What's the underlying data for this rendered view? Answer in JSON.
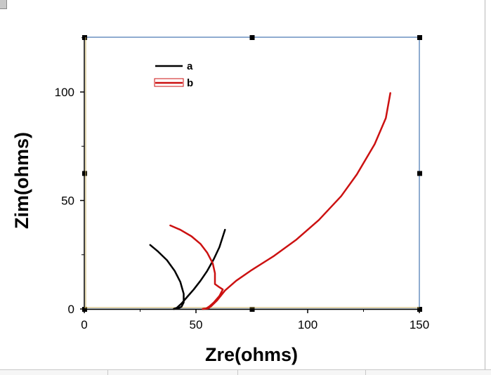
{
  "colors": {
    "frame": "#1f5aa0",
    "series_a": "#000000",
    "series_b": "#cc1111",
    "handle": "#000000"
  },
  "chart_data": {
    "type": "line",
    "title": "",
    "xlabel": "Zre(ohms)",
    "ylabel": "Zim(ohms)",
    "xlim": [
      0,
      150
    ],
    "ylim": [
      0,
      125
    ],
    "xticks": [
      0,
      50,
      100,
      150
    ],
    "yticks": [
      0,
      50,
      100
    ],
    "grid": false,
    "legend_position": "top-left",
    "series": [
      {
        "name": "a",
        "color": "#000000",
        "points": [
          [
            29.5,
            29.5
          ],
          [
            33,
            26.5
          ],
          [
            37,
            22.5
          ],
          [
            40.5,
            17.5
          ],
          [
            43,
            12.5
          ],
          [
            44.5,
            7
          ],
          [
            44.5,
            3
          ],
          [
            43.5,
            1
          ],
          [
            42,
            0.3
          ],
          [
            40,
            0
          ],
          [
            41.5,
            0.6
          ],
          [
            43.5,
            2.5
          ],
          [
            46,
            5.5
          ],
          [
            49,
            9
          ],
          [
            52,
            13
          ],
          [
            55,
            17.5
          ],
          [
            58,
            23
          ],
          [
            60.5,
            28.5
          ],
          [
            63,
            36.5
          ]
        ]
      },
      {
        "name": "b",
        "color": "#cc1111",
        "points": [
          [
            38.5,
            38.5
          ],
          [
            43,
            36.5
          ],
          [
            48,
            33.5
          ],
          [
            52,
            30
          ],
          [
            55,
            26
          ],
          [
            57.5,
            21
          ],
          [
            58.5,
            16.5
          ],
          [
            58.5,
            11.5
          ],
          [
            60.5,
            10
          ],
          [
            62,
            9
          ],
          [
            60.5,
            6
          ],
          [
            58,
            3
          ],
          [
            56,
            1.2
          ],
          [
            54.5,
            0.2
          ],
          [
            53,
            0
          ],
          [
            55.5,
            0.3
          ],
          [
            57,
            1.5
          ],
          [
            59.5,
            4
          ],
          [
            63,
            8.5
          ],
          [
            68,
            13
          ],
          [
            75,
            18
          ],
          [
            85,
            24.5
          ],
          [
            95,
            32
          ],
          [
            105,
            41
          ],
          [
            115,
            52
          ],
          [
            122,
            62
          ],
          [
            130,
            76
          ],
          [
            135,
            88
          ],
          [
            137,
            99.5
          ]
        ]
      }
    ]
  }
}
